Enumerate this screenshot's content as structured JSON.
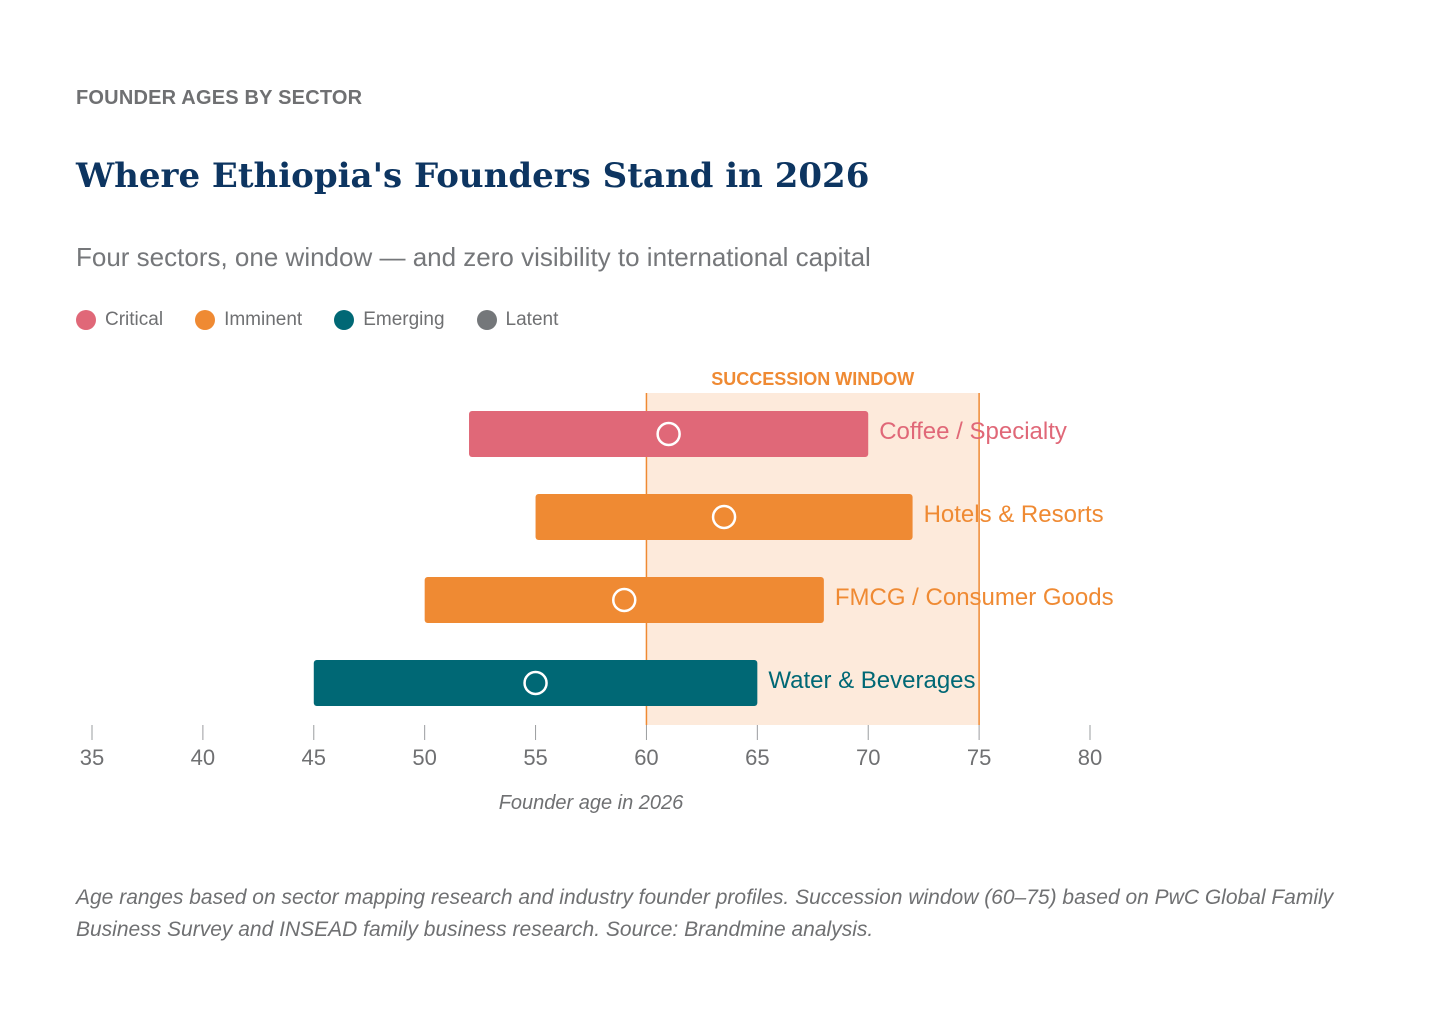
{
  "eyebrow": "FOUNDER AGES BY SECTOR",
  "title": "Where Ethiopia's Founders Stand in 2026",
  "subtitle": "Four sectors, one window — and zero visibility to international capital",
  "legend": [
    {
      "label": "Critical",
      "color": "#e06878"
    },
    {
      "label": "Imminent",
      "color": "#ef8a33"
    },
    {
      "label": "Emerging",
      "color": "#006875"
    },
    {
      "label": "Latent",
      "color": "#74777a"
    }
  ],
  "footnote": "Age ranges based on sector mapping research and industry founder profiles. Succession window (60–75) based on PwC Global Family Business Survey and INSEAD family business research. Source: Brandmine analysis.",
  "chart_data": {
    "type": "bar",
    "orientation": "horizontal-range",
    "xlabel": "Founder age in 2026",
    "xlim": [
      35,
      80
    ],
    "xticks": [
      "35",
      "40",
      "45",
      "50",
      "55",
      "60",
      "65",
      "70",
      "75",
      "80"
    ],
    "grid": false,
    "window": {
      "label": "SUCCESSION WINDOW",
      "start": 60,
      "end": 75,
      "color": "#fdeadb",
      "line_color": "#ef8a33"
    },
    "series": [
      {
        "name": "Coffee / Specialty",
        "status": "Critical",
        "min": 52,
        "max": 70,
        "median": 61,
        "color": "#e06878"
      },
      {
        "name": "Hotels & Resorts",
        "status": "Imminent",
        "min": 55,
        "max": 72,
        "median": 63.5,
        "color": "#ef8a33"
      },
      {
        "name": "FMCG / Consumer Goods",
        "status": "Imminent",
        "min": 50,
        "max": 68,
        "median": 59,
        "color": "#ef8a33"
      },
      {
        "name": "Water & Beverages",
        "status": "Emerging",
        "min": 45,
        "max": 65,
        "median": 55,
        "color": "#006875"
      }
    ]
  }
}
